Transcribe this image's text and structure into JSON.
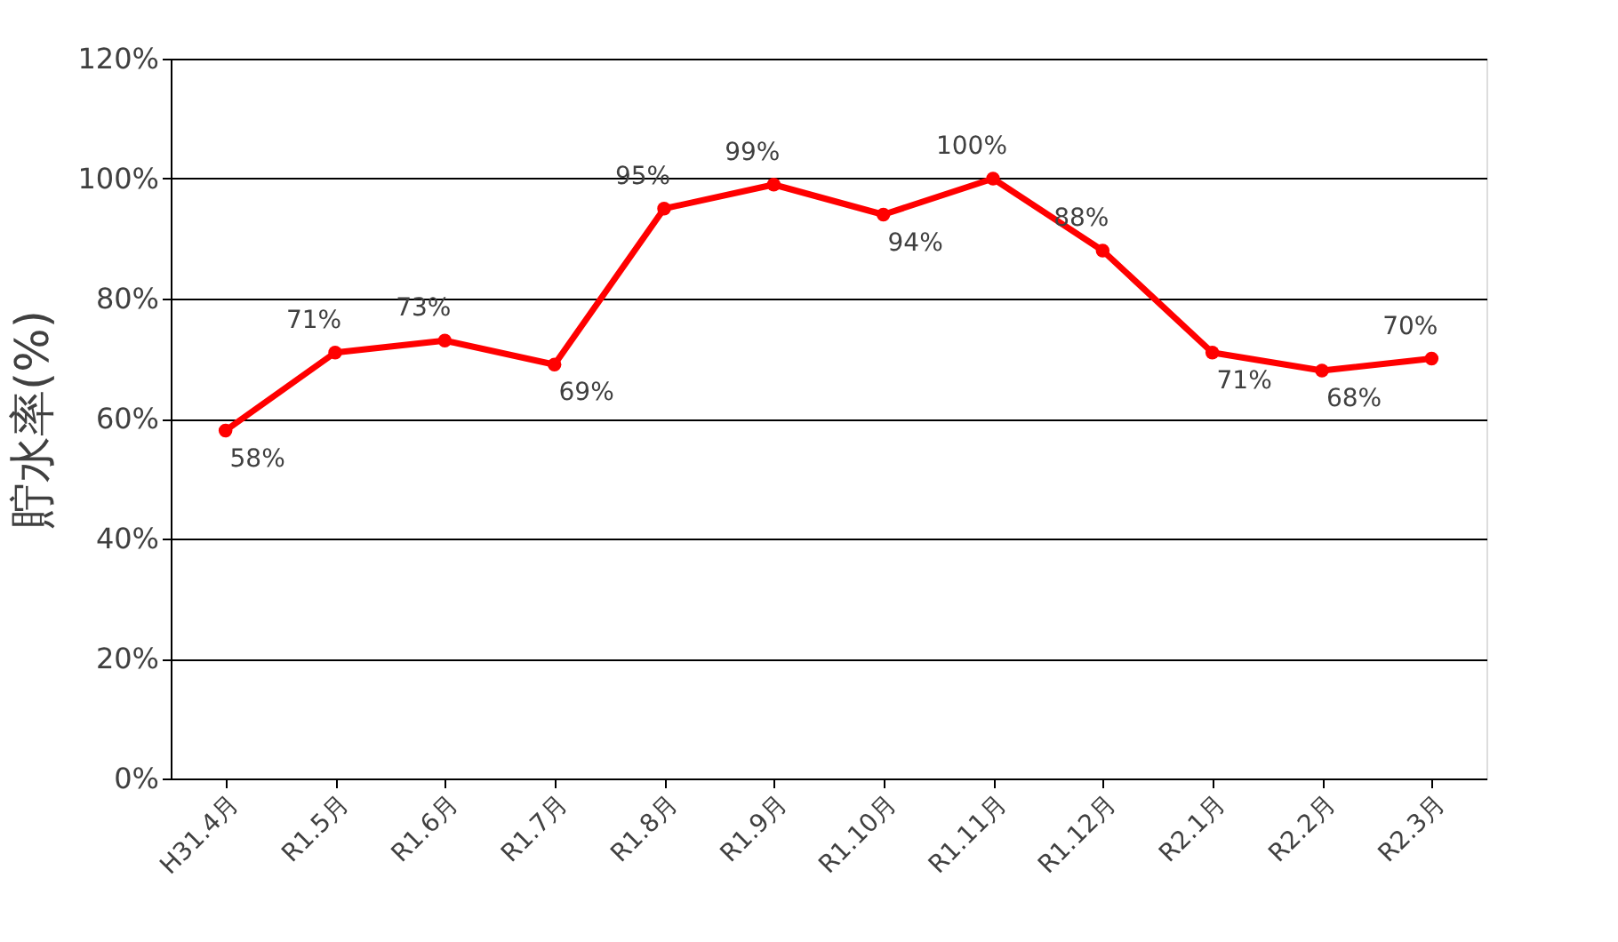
{
  "chart_data": {
    "type": "line",
    "ylabel": "貯水率(%)",
    "categories": [
      "H31.4月",
      "R1.5月",
      "R1.6月",
      "R1.7月",
      "R1.8月",
      "R1.9月",
      "R1.10月",
      "R1.11月",
      "R1.12月",
      "R2.1月",
      "R2.2月",
      "R2.3月"
    ],
    "series": [
      {
        "color": "#ff0000",
        "values": [
          58,
          71,
          73,
          69,
          95,
          99,
          94,
          100,
          88,
          71,
          68,
          70
        ]
      }
    ],
    "value_labels": [
      "58%",
      "71%",
      "73%",
      "69%",
      "95%",
      "99%",
      "94%",
      "100%",
      "88%",
      "71%",
      "68%",
      "70%"
    ],
    "ylim": [
      0,
      120
    ],
    "yticks": [
      {
        "value": 0,
        "label": "0%"
      },
      {
        "value": 20,
        "label": "20%"
      },
      {
        "value": 40,
        "label": "40%"
      },
      {
        "value": 60,
        "label": "60%"
      },
      {
        "value": 80,
        "label": "80%"
      },
      {
        "value": 100,
        "label": "100%"
      },
      {
        "value": 120,
        "label": "120%"
      }
    ],
    "grid": "y",
    "marker": "circle",
    "line_style": "solid"
  }
}
